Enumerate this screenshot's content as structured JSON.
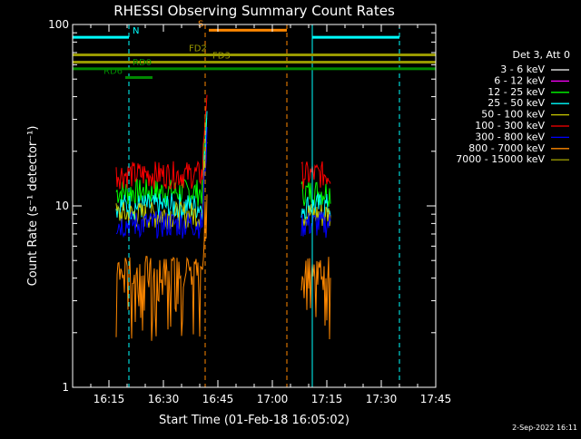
{
  "chart_data": {
    "type": "line",
    "title": "RHESSI Observing Summary Count Rates",
    "xlabel": "Start Time (01-Feb-18 16:05:02)",
    "ylabel": "Count Rate (s⁻¹ detector⁻¹)",
    "y_scale": "log",
    "ylim": [
      1,
      100
    ],
    "xlim_minutes_from_start": [
      0,
      100
    ],
    "x_ticks": [
      {
        "label": "16:15",
        "minute": 10
      },
      {
        "label": "16:30",
        "minute": 25
      },
      {
        "label": "16:45",
        "minute": 40
      },
      {
        "label": "17:00",
        "minute": 55
      },
      {
        "label": "17:15",
        "minute": 70
      },
      {
        "label": "17:30",
        "minute": 85
      },
      {
        "label": "17:45",
        "minute": 100
      }
    ],
    "y_ticks": [
      {
        "label": "1",
        "value": 1
      },
      {
        "label": "10",
        "value": 10
      },
      {
        "label": "100",
        "value": 100
      }
    ],
    "legend_header": "Det 3, Att 0",
    "series": [
      {
        "name": "3 - 6 keV",
        "color": "#ffffff",
        "level": 0
      },
      {
        "name": "6 - 12 keV",
        "color": "#ff00ff",
        "level": 0
      },
      {
        "name": "12 - 25 keV",
        "color": "#00ff00",
        "level": 12
      },
      {
        "name": "25 - 50 keV",
        "color": "#00ffff",
        "level": 10
      },
      {
        "name": "50 - 100 keV",
        "color": "#c8c800",
        "level": 9
      },
      {
        "name": "100 - 300 keV",
        "color": "#ff0000",
        "level": 15
      },
      {
        "name": "300 - 800 keV",
        "color": "#0000ff",
        "level": 8
      },
      {
        "name": "800 - 7000 keV",
        "color": "#ff8800",
        "level": 4.5
      },
      {
        "name": "7000 - 15000 keV",
        "color": "#999900",
        "level": 0
      }
    ],
    "observing_intervals_minutes": [
      [
        12,
        37
      ],
      [
        63,
        71
      ]
    ],
    "flags": [
      {
        "label": "N",
        "color": "#00ffff",
        "level": 85,
        "start": 0,
        "end": 15.5,
        "label_at": 16.5
      },
      {
        "label": "N",
        "color": "#00ffff",
        "level": 85,
        "start": 66,
        "end": 90,
        "label_at": null
      },
      {
        "label": "S",
        "color": "#ff8800",
        "level": 93,
        "start": 37.5,
        "end": 59,
        "label_at": 34.5
      },
      {
        "label": "FD2",
        "color": "#999900",
        "level": 68,
        "start": 0,
        "end": 100,
        "label_at": 32
      },
      {
        "label": "FD3",
        "color": "#999900",
        "level": 62,
        "start": 0,
        "end": 100,
        "label_at": 38.5
      },
      {
        "label": "RD0",
        "color": "#008800",
        "level": 57,
        "start": 0,
        "end": 100,
        "label_at": 16.5
      },
      {
        "label": "RD6",
        "color": "#008800",
        "level": 51,
        "start": 14.5,
        "end": 22,
        "label_at": 8.5
      }
    ],
    "saa_lines_minutes": [
      0,
      66
    ],
    "eclipse_lines_minutes": [
      15.5,
      90
    ],
    "flare_lines_minutes": [
      36.5,
      59
    ],
    "grid": false,
    "legend_position": "right"
  },
  "footer_date": "2-Sep-2022 16:11"
}
